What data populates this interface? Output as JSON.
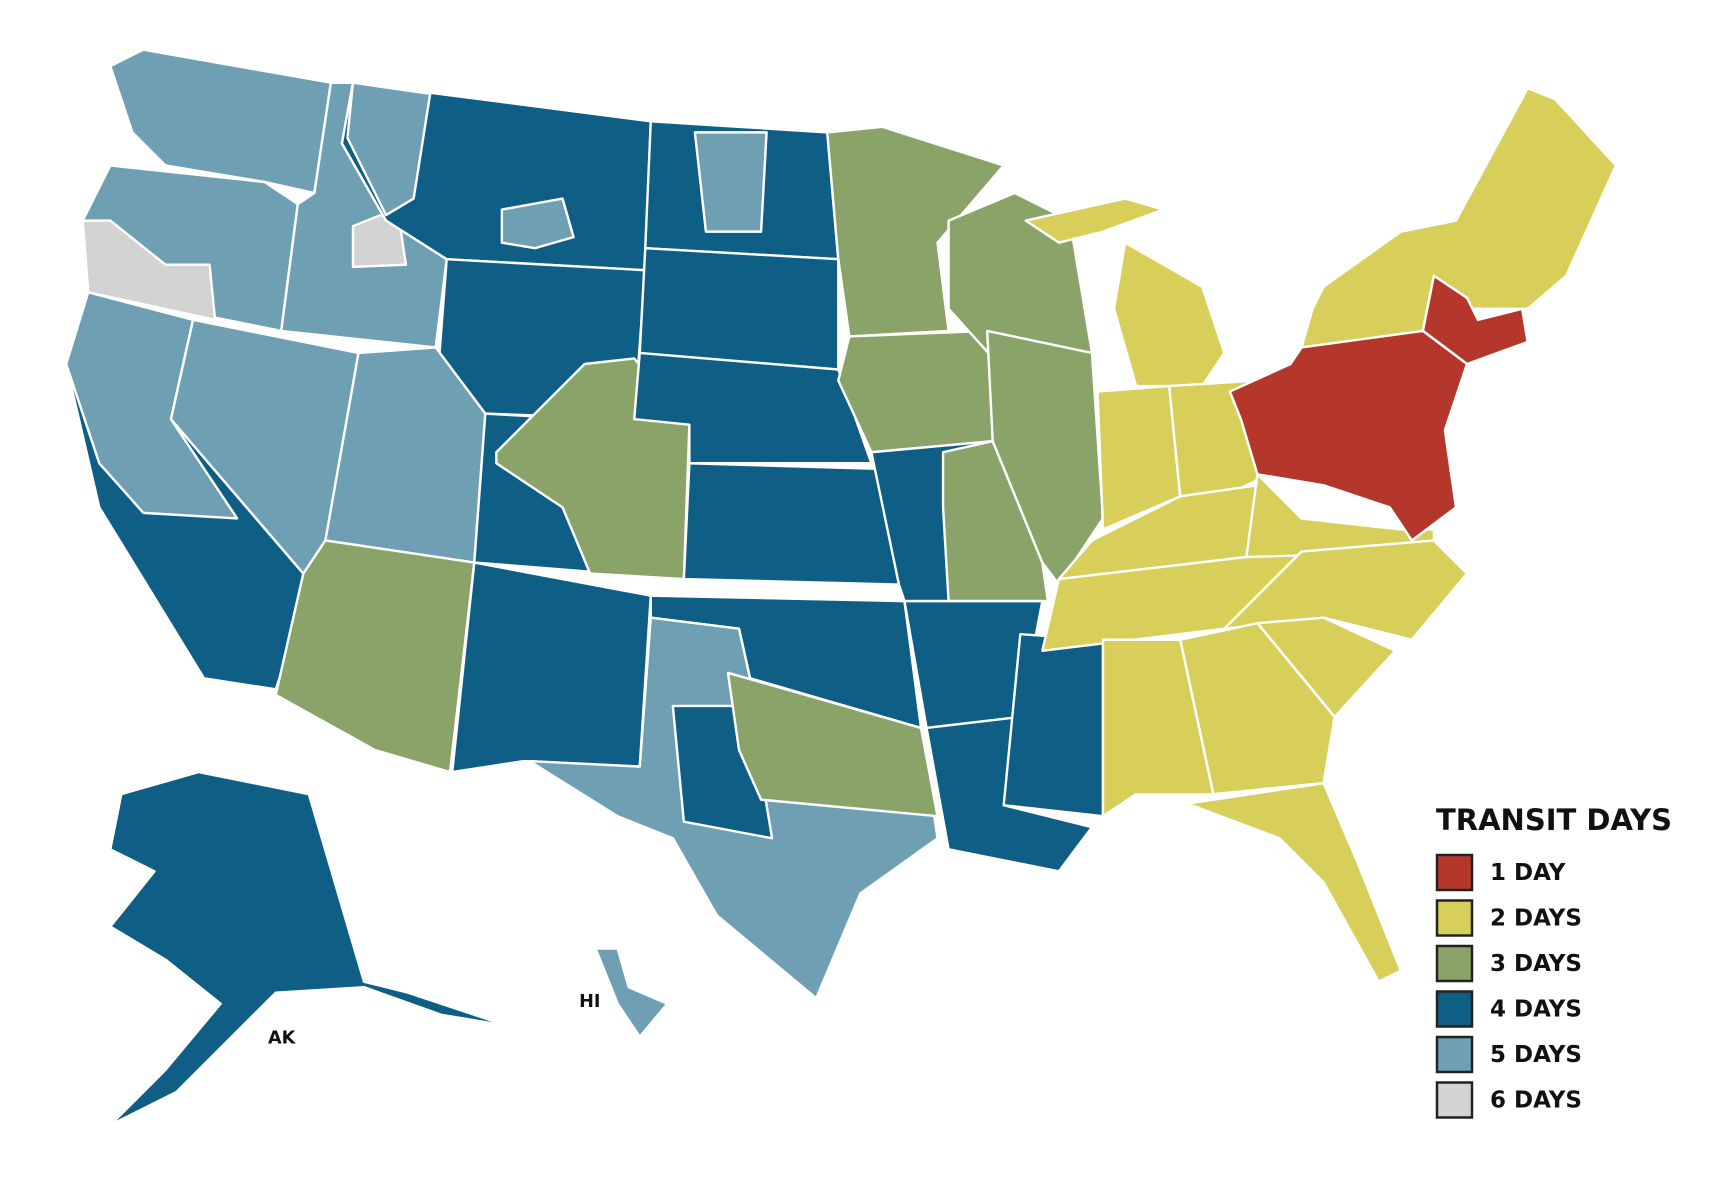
{
  "legend": {
    "title": "TRANSIT DAYS",
    "items": [
      {
        "label": "1 DAY",
        "color": "#b5372b"
      },
      {
        "label": "2 DAYS",
        "color": "#d8cf5a"
      },
      {
        "label": "3 DAYS",
        "color": "#8aa368"
      },
      {
        "label": "4 DAYS",
        "color": "#0e5e85"
      },
      {
        "label": "5 DAYS",
        "color": "#6f9fb3"
      },
      {
        "label": "6 DAYS",
        "color": "#d3d3d3"
      }
    ]
  },
  "labels": {
    "alaska": "AK",
    "hawaii": "HI"
  }
}
